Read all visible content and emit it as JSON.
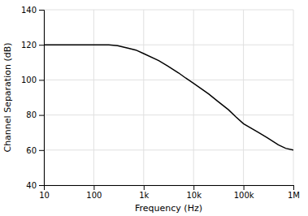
{
  "chart_data": {
    "type": "line",
    "xlabel": "Frequency (Hz)",
    "ylabel": "Channel Separation (dB)",
    "x": [
      10,
      20,
      30,
      50,
      70,
      100,
      200,
      300,
      500,
      700,
      1000,
      2000,
      3000,
      5000,
      7000,
      10000,
      20000,
      30000,
      50000,
      70000,
      100000,
      200000,
      300000,
      500000,
      700000,
      1000000
    ],
    "values": [
      120,
      120,
      120,
      120,
      120,
      120,
      120,
      119.5,
      118,
      117,
      115,
      111,
      108,
      104,
      101,
      98,
      92,
      88,
      83,
      79,
      75,
      70,
      67,
      63,
      61,
      60
    ],
    "color": "#000000",
    "log": "x",
    "xlim": [
      10,
      1000000
    ],
    "xticks": [
      10,
      100,
      {
        "value": 1000,
        "label": "1k"
      },
      {
        "value": 10000,
        "label": "10k"
      },
      {
        "value": 100000,
        "label": "100k"
      },
      {
        "value": 1000000,
        "label": "1M"
      }
    ],
    "ylim": [
      40,
      140
    ],
    "yticks": [
      40,
      60,
      80,
      100,
      120,
      140
    ],
    "grid": true
  }
}
